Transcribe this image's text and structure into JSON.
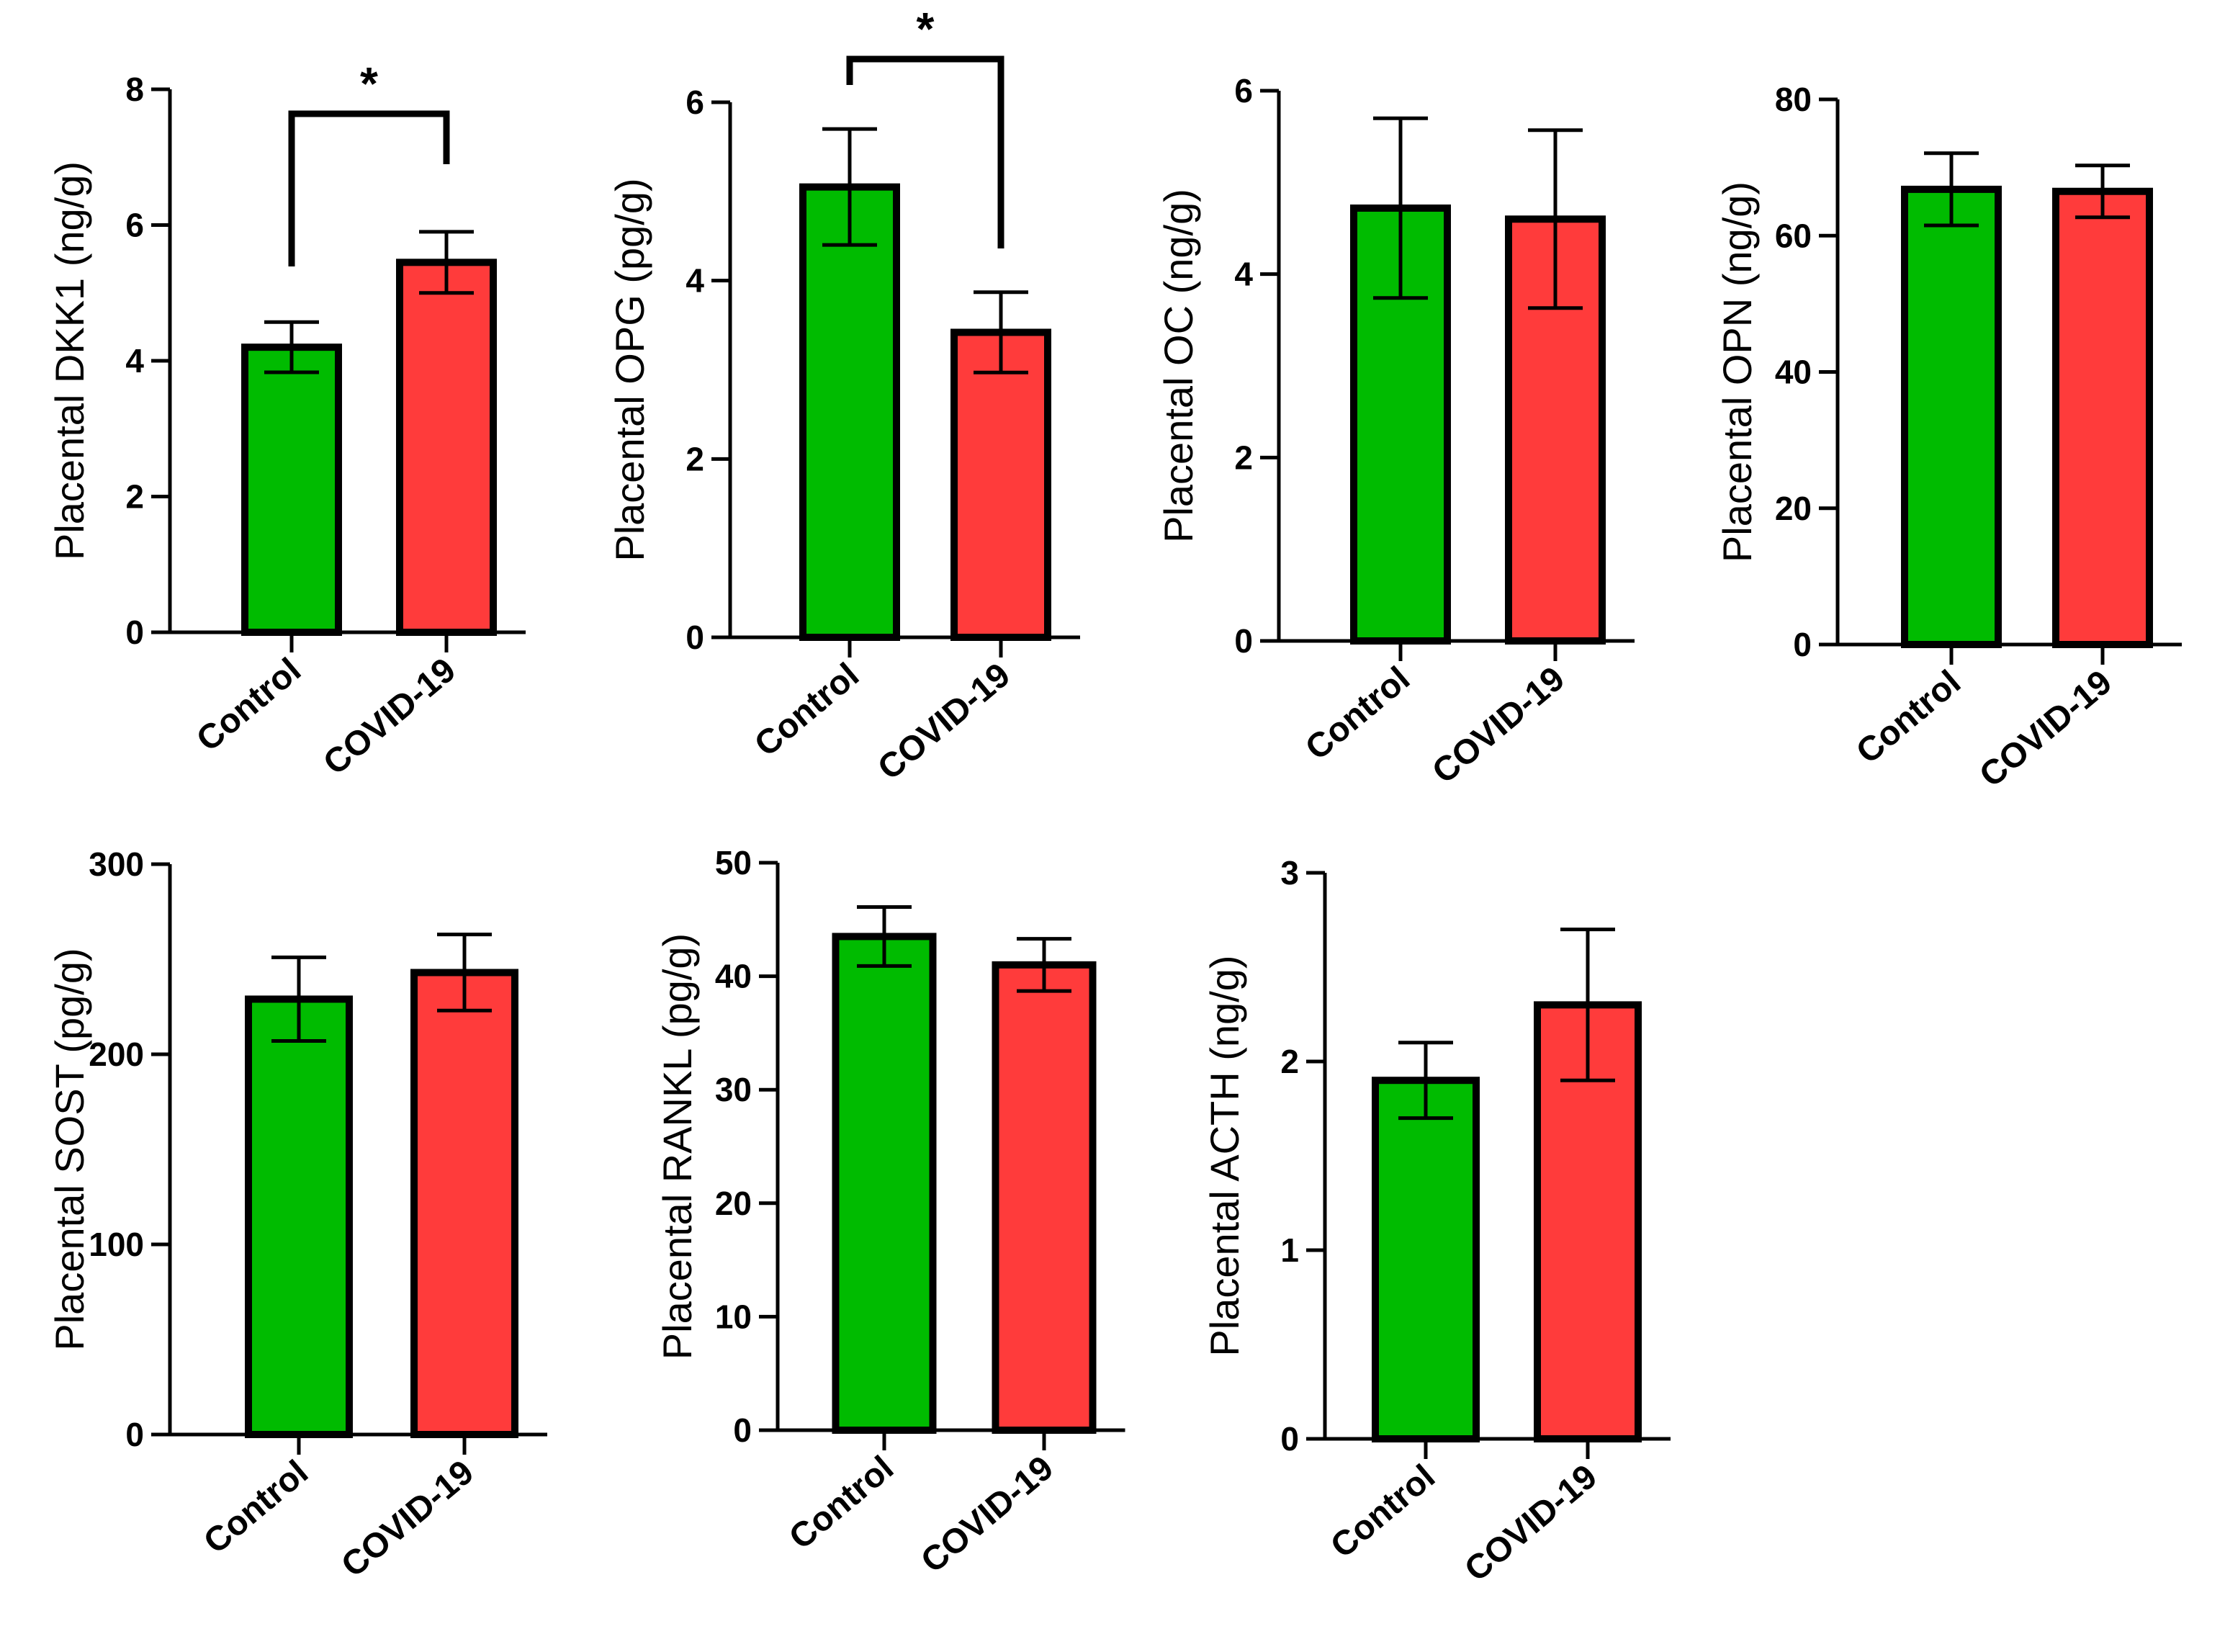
{
  "colors": {
    "control": "#00bb00",
    "covid": "#ff3b3b",
    "axis": "#000000"
  },
  "chart_data": [
    {
      "type": "bar",
      "id": "dkk1",
      "ylabel": "Placental DKK1 (ng/g)",
      "categories": [
        "Control",
        "COVID-19"
      ],
      "values": [
        4.2,
        5.45
      ],
      "errors": [
        0.37,
        0.45
      ],
      "ylim": [
        0,
        8
      ],
      "yticks": [
        0,
        2,
        4,
        6,
        8
      ],
      "tick_labels": [
        "0",
        "2",
        "4",
        "6",
        "8"
      ],
      "significance": "*"
    },
    {
      "type": "bar",
      "id": "opg",
      "ylabel": "Placental OPG (pg/g)",
      "categories": [
        "Control",
        "COVID-19"
      ],
      "values": [
        5.05,
        3.42
      ],
      "errors": [
        0.65,
        0.45
      ],
      "ylim": [
        0,
        6
      ],
      "yticks": [
        0,
        2,
        4,
        6
      ],
      "tick_labels": [
        "0",
        "2",
        "4",
        "6"
      ],
      "significance": "*"
    },
    {
      "type": "bar",
      "id": "oc",
      "ylabel": "Placental OC (ng/g)",
      "categories": [
        "Control",
        "COVID-19"
      ],
      "values": [
        4.72,
        4.6
      ],
      "errors": [
        0.98,
        0.97
      ],
      "ylim": [
        0,
        6
      ],
      "yticks": [
        0,
        2,
        4,
        6
      ],
      "tick_labels": [
        "0",
        "2",
        "4",
        "6"
      ]
    },
    {
      "type": "bar",
      "id": "opn",
      "ylabel": "Placental OPN (ng/g)",
      "categories": [
        "Control",
        "COVID-19"
      ],
      "values": [
        66.8,
        66.5
      ],
      "errors": [
        5.3,
        3.8
      ],
      "ylim": [
        0,
        80
      ],
      "yticks": [
        0,
        20,
        40,
        60,
        80
      ],
      "tick_labels": [
        "0",
        "20",
        "40",
        "60",
        "80"
      ]
    },
    {
      "type": "bar",
      "id": "sost",
      "ylabel": "Placental SOST (pg/g)",
      "categories": [
        "Control",
        "COVID-19"
      ],
      "values": [
        229,
        243
      ],
      "errors": [
        22,
        20
      ],
      "ylim": [
        0,
        300
      ],
      "yticks": [
        0,
        100,
        200,
        300
      ],
      "tick_labels": [
        "0",
        "100",
        "200",
        "300"
      ]
    },
    {
      "type": "bar",
      "id": "rankl",
      "ylabel": "Placental RANKL (pg/g)",
      "categories": [
        "Control",
        "COVID-19"
      ],
      "values": [
        43.5,
        41
      ],
      "errors": [
        2.6,
        2.3
      ],
      "ylim": [
        0,
        50
      ],
      "yticks": [
        0,
        10,
        20,
        30,
        40,
        50
      ],
      "tick_labels": [
        "0",
        "10",
        "20",
        "30",
        "40",
        "50"
      ]
    },
    {
      "type": "bar",
      "id": "acth",
      "ylabel": "Placental ACTH (ng/g)",
      "categories": [
        "Control",
        "COVID-19"
      ],
      "values": [
        1.9,
        2.3
      ],
      "errors": [
        0.2,
        0.4
      ],
      "ylim": [
        0,
        3
      ],
      "yticks": [
        0,
        1,
        2,
        3
      ],
      "tick_labels": [
        "0",
        "1",
        "2",
        "3"
      ]
    }
  ]
}
